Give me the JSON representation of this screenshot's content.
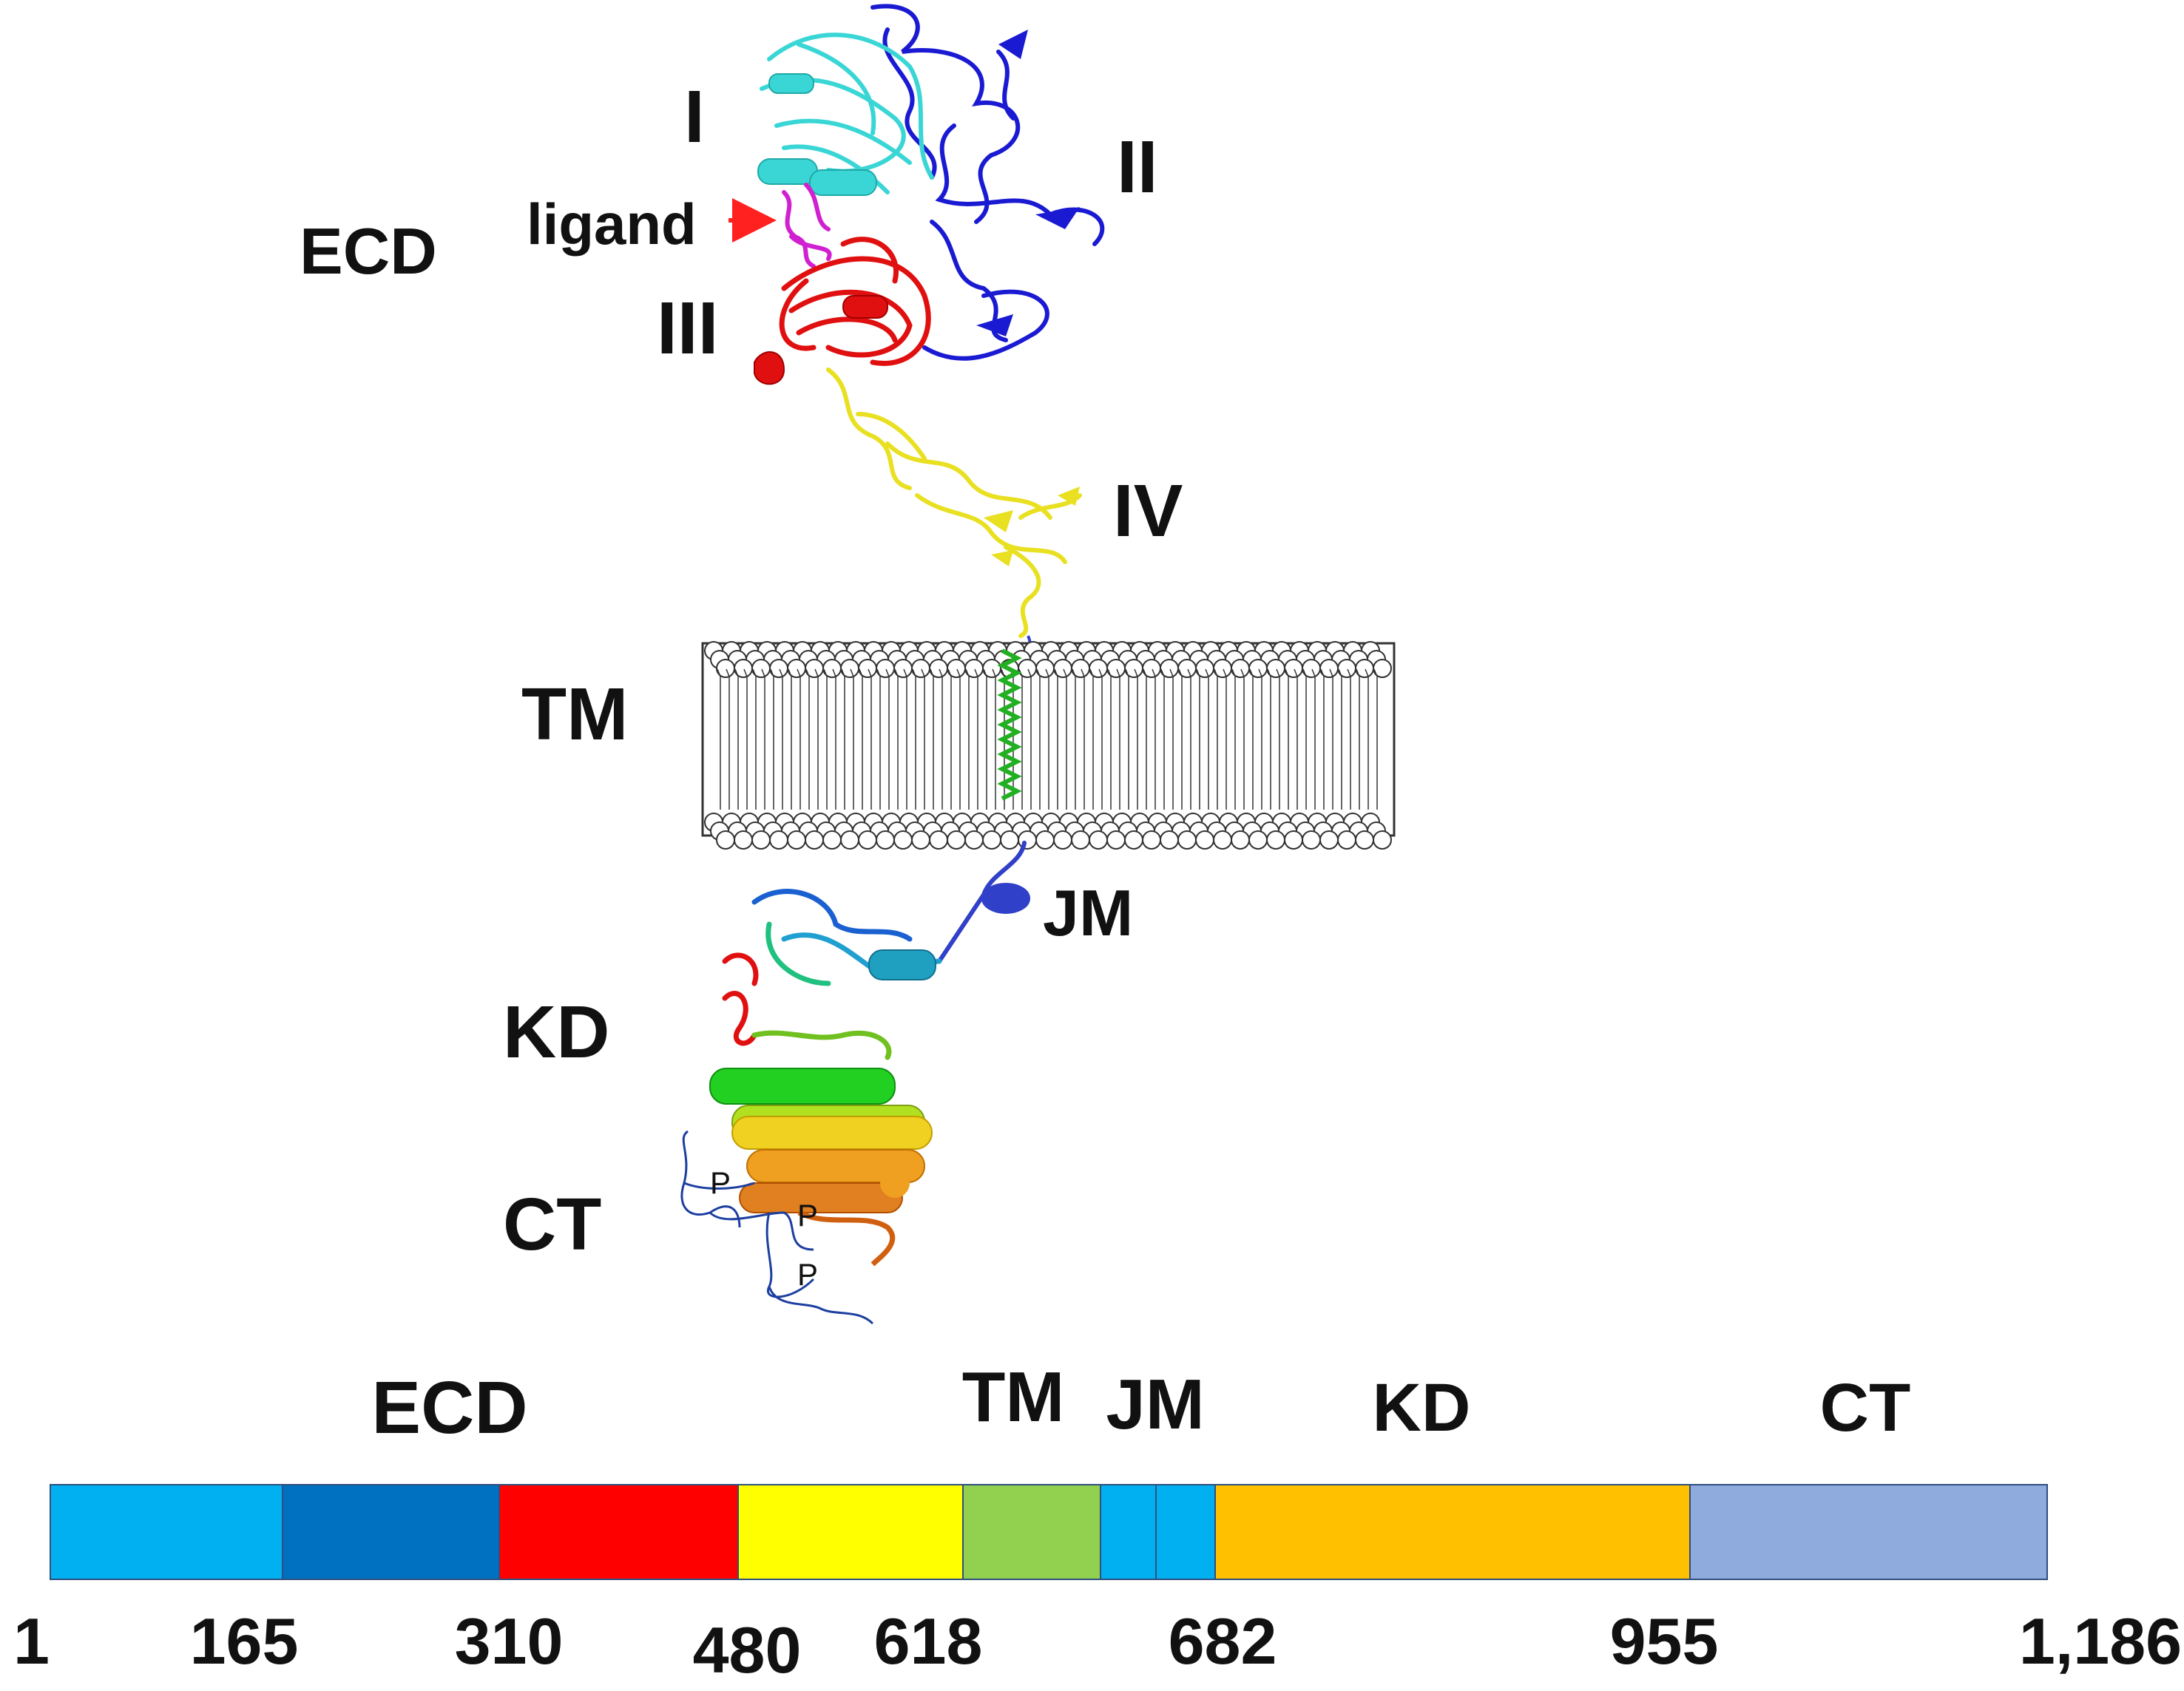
{
  "structure": {
    "labels": {
      "domain_I": "I",
      "domain_II": "II",
      "domain_III": "III",
      "domain_IV": "IV",
      "ecd": "ECD",
      "ligand": "ligand",
      "tm": "TM",
      "jm": "JM",
      "kd": "KD",
      "ct": "CT",
      "phospho": "P"
    },
    "colors": {
      "domain_I": "#3ad6d6",
      "domain_II": "#1a1ad2",
      "domain_III": "#e01010",
      "domain_IV": "#e8e020",
      "ligand": "#d020d0",
      "tm_helix": "#22b022",
      "jm": "#3040c8",
      "ct_tail": "#1c3fa0",
      "arrow": "#ff2020"
    }
  },
  "bar": {
    "headers": {
      "ecd": "ECD",
      "tm": "TM",
      "jm": "JM",
      "kd": "KD",
      "ct": "CT"
    },
    "segments": [
      {
        "name": "ECD domain I",
        "start": 1,
        "end": 165,
        "color": "#00b0f0"
      },
      {
        "name": "ECD domain II",
        "start": 165,
        "end": 310,
        "color": "#0070c0"
      },
      {
        "name": "ECD domain III",
        "start": 310,
        "end": 480,
        "color": "#ff0000"
      },
      {
        "name": "ECD domain IV",
        "start": 480,
        "end": 618,
        "color": "#ffff00"
      },
      {
        "name": "TM",
        "start": 618,
        "end": 644,
        "color": "#92d050"
      },
      {
        "name": "JM",
        "start": 644,
        "end": 682,
        "color": "#00b0f0"
      },
      {
        "name": "KD",
        "start": 682,
        "end": 955,
        "color": "#ffc000"
      },
      {
        "name": "CT",
        "start": 955,
        "end": 1186,
        "color": "#8faadc"
      }
    ],
    "ticks": [
      "1",
      "165",
      "310",
      "480",
      "618",
      "682",
      "955",
      "1,186"
    ]
  }
}
